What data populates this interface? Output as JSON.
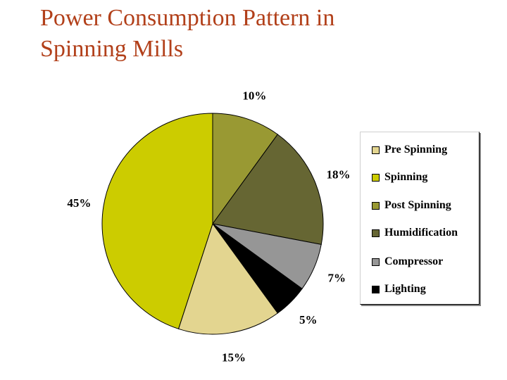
{
  "title_lines": [
    "Power Consumption Pattern in",
    "Spinning Mills"
  ],
  "chart_data": {
    "type": "pie",
    "title": "Power Consumption Pattern in Spinning Mills",
    "legend_position": "right",
    "slices": [
      {
        "name": "Pre Spinning",
        "value": 15,
        "label": "15%",
        "color": "#e3d590"
      },
      {
        "name": "Spinning",
        "value": 45,
        "label": "45%",
        "color": "#cccc00"
      },
      {
        "name": "Post Spinning",
        "value": 10,
        "label": "10%",
        "color": "#999933"
      },
      {
        "name": "Humidification",
        "value": 18,
        "label": "18%",
        "color": "#666633"
      },
      {
        "name": "Compressor",
        "value": 7,
        "label": "7%",
        "color": "#969696"
      },
      {
        "name": "Lighting",
        "value": 5,
        "label": "5%",
        "color": "#000000"
      }
    ]
  }
}
